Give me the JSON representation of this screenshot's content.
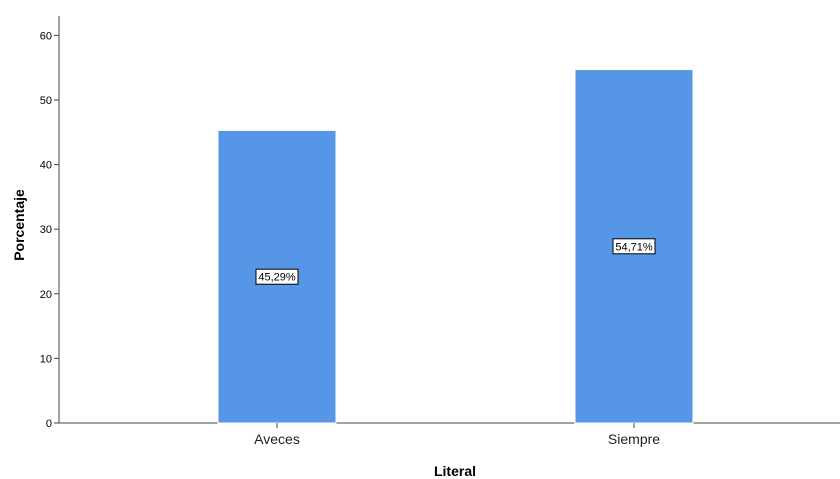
{
  "chart_data": {
    "type": "bar",
    "categories": [
      "Aveces",
      "Siempre"
    ],
    "values": [
      45.29,
      54.71
    ],
    "data_labels": [
      "45,29%",
      "54,71%"
    ],
    "title": "",
    "xlabel": "Literal",
    "ylabel": "Porcentaje",
    "ylim": [
      0,
      63
    ],
    "yticks": [
      0,
      10,
      20,
      30,
      40,
      50,
      60
    ],
    "grid": false,
    "bar_color": "#5596e6",
    "bar_edge_color": "#ffffff"
  }
}
